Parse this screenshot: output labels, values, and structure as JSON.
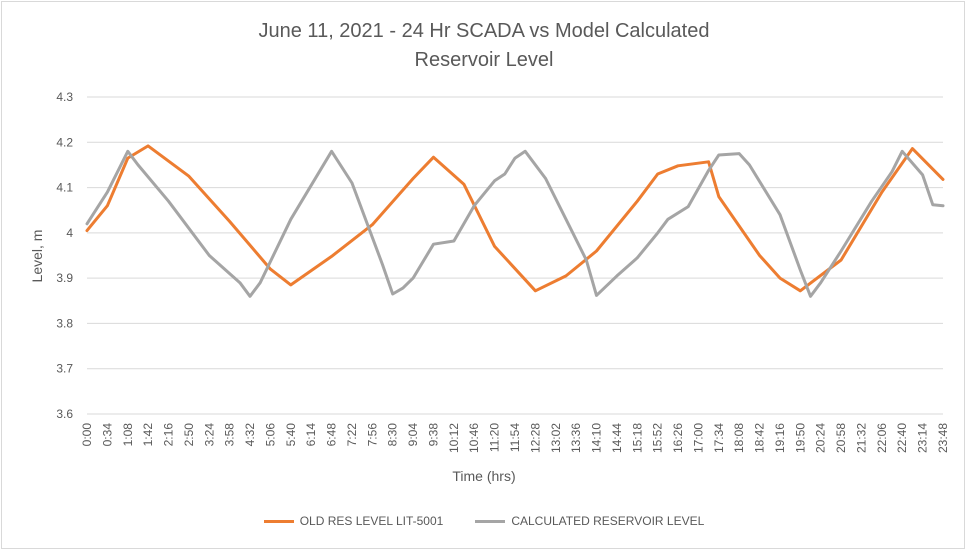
{
  "chart_data": {
    "type": "line",
    "title": "June 11, 2021 - 24 Hr SCADA vs Model Calculated",
    "subtitle": "Reservoir Level",
    "xlabel": "Time (hrs)",
    "ylabel": "Level, m",
    "ylim": [
      3.6,
      4.3
    ],
    "yticks": [
      "3.6",
      "3.7",
      "3.8",
      "3.9",
      "4",
      "4.1",
      "4.2",
      "4.3"
    ],
    "xlim": [
      "0:00",
      "23:48"
    ],
    "xticks": [
      "0:00",
      "0:34",
      "1:08",
      "1:42",
      "2:16",
      "2:50",
      "3:24",
      "3:58",
      "4:32",
      "5:06",
      "5:40",
      "6:14",
      "6:48",
      "7:22",
      "7:56",
      "8:30",
      "9:04",
      "9:38",
      "10:12",
      "10:46",
      "11:20",
      "11:54",
      "12:28",
      "13:02",
      "13:36",
      "14:10",
      "14:44",
      "15:18",
      "15:52",
      "16:26",
      "17:00",
      "17:34",
      "18:08",
      "18:42",
      "19:16",
      "19:50",
      "20:24",
      "20:58",
      "21:32",
      "22:06",
      "22:40",
      "23:14",
      "23:48"
    ],
    "grid": "horizontal",
    "legend_position": "bottom",
    "series": [
      {
        "name": "OLD RES LEVEL LIT-5001",
        "color": "#ed7d31",
        "points": [
          [
            "0:00",
            4.005
          ],
          [
            "0:34",
            4.06
          ],
          [
            "1:08",
            4.165
          ],
          [
            "1:42",
            4.192
          ],
          [
            "2:50",
            4.125
          ],
          [
            "3:58",
            4.025
          ],
          [
            "5:06",
            3.92
          ],
          [
            "5:40",
            3.885
          ],
          [
            "6:48",
            3.948
          ],
          [
            "7:56",
            4.018
          ],
          [
            "9:04",
            4.12
          ],
          [
            "9:38",
            4.167
          ],
          [
            "10:29",
            4.107
          ],
          [
            "11:20",
            3.97
          ],
          [
            "12:28",
            3.872
          ],
          [
            "13:19",
            3.905
          ],
          [
            "14:10",
            3.96
          ],
          [
            "15:18",
            4.07
          ],
          [
            "15:52",
            4.13
          ],
          [
            "16:26",
            4.148
          ],
          [
            "17:17",
            4.157
          ],
          [
            "17:34",
            4.08
          ],
          [
            "18:42",
            3.95
          ],
          [
            "19:16",
            3.9
          ],
          [
            "19:50",
            3.872
          ],
          [
            "20:58",
            3.94
          ],
          [
            "22:06",
            4.09
          ],
          [
            "22:57",
            4.186
          ],
          [
            "23:48",
            4.118
          ]
        ]
      },
      {
        "name": "CALCULATED RESERVOIR LEVEL",
        "color": "#a5a5a5",
        "points": [
          [
            "0:00",
            4.02
          ],
          [
            "0:34",
            4.09
          ],
          [
            "1:08",
            4.18
          ],
          [
            "1:25",
            4.15
          ],
          [
            "2:16",
            4.07
          ],
          [
            "3:24",
            3.95
          ],
          [
            "4:15",
            3.89
          ],
          [
            "4:32",
            3.86
          ],
          [
            "4:49",
            3.89
          ],
          [
            "5:40",
            4.03
          ],
          [
            "6:48",
            4.18
          ],
          [
            "7:22",
            4.11
          ],
          [
            "8:13",
            3.93
          ],
          [
            "8:30",
            3.865
          ],
          [
            "8:47",
            3.878
          ],
          [
            "9:04",
            3.9
          ],
          [
            "9:38",
            3.975
          ],
          [
            "10:12",
            3.982
          ],
          [
            "10:46",
            4.06
          ],
          [
            "11:20",
            4.115
          ],
          [
            "11:37",
            4.13
          ],
          [
            "11:54",
            4.165
          ],
          [
            "12:11",
            4.18
          ],
          [
            "12:45",
            4.12
          ],
          [
            "13:19",
            4.03
          ],
          [
            "13:53",
            3.94
          ],
          [
            "14:10",
            3.862
          ],
          [
            "14:44",
            3.905
          ],
          [
            "15:18",
            3.945
          ],
          [
            "15:52",
            4.0
          ],
          [
            "16:09",
            4.03
          ],
          [
            "16:43",
            4.058
          ],
          [
            "17:17",
            4.138
          ],
          [
            "17:34",
            4.172
          ],
          [
            "18:08",
            4.175
          ],
          [
            "18:25",
            4.15
          ],
          [
            "19:16",
            4.04
          ],
          [
            "19:50",
            3.918
          ],
          [
            "20:07",
            3.86
          ],
          [
            "20:24",
            3.89
          ],
          [
            "20:58",
            3.96
          ],
          [
            "21:49",
            4.07
          ],
          [
            "22:23",
            4.135
          ],
          [
            "22:40",
            4.18
          ],
          [
            "23:14",
            4.128
          ],
          [
            "23:31",
            4.062
          ],
          [
            "23:48",
            4.06
          ]
        ]
      }
    ]
  }
}
